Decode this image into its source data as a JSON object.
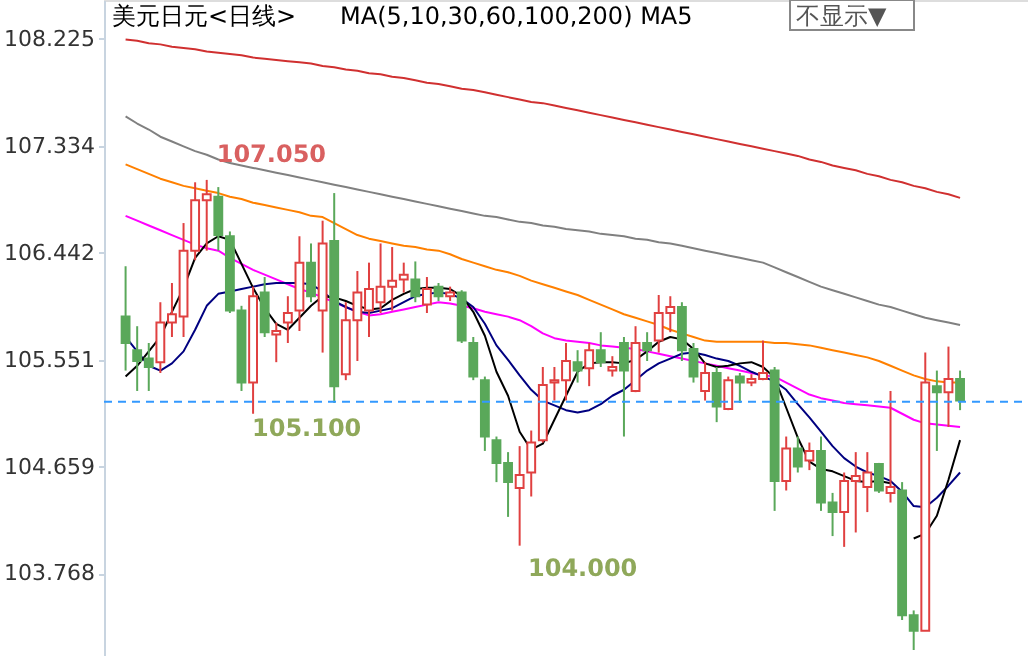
{
  "chart_data": {
    "type": "candlestick",
    "title": "美元日元<日线>",
    "subtitle": "MA(5,10,30,60,100,200) MA5",
    "categories": [
      null,
      null,
      null,
      null,
      null,
      null,
      null,
      null,
      null,
      null,
      null,
      null,
      null,
      null,
      null,
      null,
      null,
      null,
      null,
      null,
      null,
      null,
      null,
      null,
      null,
      null,
      null,
      null,
      null,
      null,
      null,
      null,
      null,
      null,
      null,
      null,
      null,
      null,
      null,
      null,
      null,
      null,
      null,
      null,
      null,
      null,
      null,
      null,
      null,
      null,
      null,
      null,
      null,
      null,
      null,
      null,
      null,
      null,
      null,
      null,
      null,
      null,
      null,
      null,
      null,
      null,
      null,
      null,
      null,
      null,
      null,
      null,
      null
    ],
    "ohlc": [
      [
        105.91,
        106.33,
        105.46,
        105.69
      ],
      [
        105.63,
        105.83,
        105.29,
        105.54
      ],
      [
        105.56,
        105.69,
        105.29,
        105.49
      ],
      [
        105.53,
        106.03,
        105.44,
        105.86
      ],
      [
        105.86,
        106.19,
        105.74,
        105.93
      ],
      [
        105.91,
        106.69,
        105.74,
        106.46
      ],
      [
        106.46,
        107.03,
        106.38,
        106.88
      ],
      [
        106.88,
        107.05,
        106.46,
        106.93
      ],
      [
        106.91,
        106.99,
        106.46,
        106.59
      ],
      [
        106.58,
        106.62,
        105.94,
        105.96
      ],
      [
        105.96,
        106.0,
        105.29,
        105.36
      ],
      [
        105.36,
        106.16,
        105.1,
        106.08
      ],
      [
        106.11,
        106.24,
        105.74,
        105.78
      ],
      [
        105.76,
        105.86,
        105.53,
        105.79
      ],
      [
        105.86,
        106.08,
        105.69,
        105.94
      ],
      [
        105.96,
        106.58,
        105.79,
        106.36
      ],
      [
        106.36,
        106.52,
        106.03,
        106.08
      ],
      [
        105.96,
        106.71,
        105.61,
        106.52
      ],
      [
        106.54,
        106.94,
        105.19,
        105.33
      ],
      [
        105.43,
        106.03,
        105.38,
        105.88
      ],
      [
        105.88,
        106.29,
        105.54,
        106.11
      ],
      [
        105.96,
        106.36,
        105.74,
        106.14
      ],
      [
        106.03,
        106.52,
        105.94,
        106.16
      ],
      [
        106.16,
        106.49,
        105.96,
        106.21
      ],
      [
        106.22,
        106.36,
        106.11,
        106.26
      ],
      [
        106.22,
        106.37,
        106.03,
        106.08
      ],
      [
        106.01,
        106.24,
        105.94,
        106.14
      ],
      [
        106.16,
        106.19,
        106.04,
        106.08
      ],
      [
        106.08,
        106.16,
        106.04,
        106.11
      ],
      [
        106.11,
        106.13,
        105.69,
        105.71
      ],
      [
        105.69,
        105.74,
        105.38,
        105.41
      ],
      [
        105.38,
        105.41,
        104.79,
        104.91
      ],
      [
        104.88,
        104.91,
        104.53,
        104.69
      ],
      [
        104.69,
        104.78,
        104.24,
        104.53
      ],
      [
        104.48,
        104.83,
        104.0,
        104.59
      ],
      [
        104.61,
        104.96,
        104.41,
        104.86
      ],
      [
        104.88,
        105.49,
        104.86,
        105.34
      ],
      [
        105.36,
        105.49,
        105.21,
        105.38
      ],
      [
        105.38,
        105.69,
        105.21,
        105.54
      ],
      [
        105.53,
        105.63,
        105.36,
        105.46
      ],
      [
        105.48,
        105.69,
        105.33,
        105.63
      ],
      [
        105.63,
        105.78,
        105.49,
        105.53
      ],
      [
        105.46,
        105.58,
        105.41,
        105.49
      ],
      [
        105.69,
        105.74,
        104.91,
        105.46
      ],
      [
        105.29,
        105.83,
        105.28,
        105.69
      ],
      [
        105.69,
        105.78,
        105.54,
        105.63
      ],
      [
        105.71,
        106.09,
        105.61,
        105.94
      ],
      [
        105.94,
        106.08,
        105.78,
        105.99
      ],
      [
        105.99,
        106.03,
        105.54,
        105.63
      ],
      [
        105.64,
        105.69,
        105.36,
        105.41
      ],
      [
        105.29,
        105.53,
        105.21,
        105.44
      ],
      [
        105.44,
        105.49,
        105.03,
        105.16
      ],
      [
        105.14,
        105.41,
        105.13,
        105.38
      ],
      [
        105.41,
        105.44,
        105.19,
        105.36
      ],
      [
        105.36,
        105.43,
        105.33,
        105.39
      ],
      [
        105.39,
        105.71,
        105.38,
        105.44
      ],
      [
        105.46,
        105.49,
        104.29,
        104.54
      ],
      [
        104.54,
        104.91,
        104.46,
        104.81
      ],
      [
        104.81,
        104.91,
        104.61,
        104.66
      ],
      [
        104.71,
        104.86,
        104.63,
        104.79
      ],
      [
        104.79,
        104.91,
        104.29,
        104.36
      ],
      [
        104.36,
        104.44,
        104.08,
        104.28
      ],
      [
        104.28,
        104.61,
        103.99,
        104.54
      ],
      [
        104.54,
        104.78,
        104.11,
        104.58
      ],
      [
        104.49,
        104.78,
        104.28,
        104.61
      ],
      [
        104.68,
        104.69,
        104.44,
        104.46
      ],
      [
        104.44,
        105.29,
        104.36,
        104.49
      ],
      [
        104.46,
        104.53,
        103.38,
        103.42
      ],
      [
        103.42,
        103.46,
        103.13,
        103.29
      ],
      [
        103.29,
        105.61,
        103.29,
        105.36
      ],
      [
        105.33,
        105.46,
        104.79,
        105.28
      ],
      [
        105.28,
        105.66,
        104.99,
        105.39
      ],
      [
        105.39,
        105.46,
        105.13,
        105.21
      ]
    ],
    "colors": [
      "#5aa85a",
      "#5aa85a",
      "#5aa85a",
      "#e04040",
      "#e04040",
      "#e04040",
      "#e04040",
      "#e04040",
      "#5aa85a",
      "#5aa85a",
      "#5aa85a",
      "#e04040",
      "#5aa85a",
      "#e04040",
      "#e04040",
      "#e04040",
      "#5aa85a",
      "#e04040",
      "#5aa85a",
      "#e04040",
      "#e04040",
      "#e04040",
      "#e04040",
      "#e04040",
      "#e04040",
      "#5aa85a",
      "#e04040",
      "#5aa85a",
      "#e04040",
      "#5aa85a",
      "#5aa85a",
      "#5aa85a",
      "#5aa85a",
      "#5aa85a",
      "#e04040",
      "#e04040",
      "#e04040",
      "#e04040",
      "#e04040",
      "#5aa85a",
      "#e04040",
      "#5aa85a",
      "#e04040",
      "#5aa85a",
      "#e04040",
      "#5aa85a",
      "#e04040",
      "#e04040",
      "#5aa85a",
      "#5aa85a",
      "#e04040",
      "#5aa85a",
      "#e04040",
      "#5aa85a",
      "#e04040",
      "#e04040",
      "#5aa85a",
      "#e04040",
      "#5aa85a",
      "#e04040",
      "#5aa85a",
      "#5aa85a",
      "#e04040",
      "#e04040",
      "#e04040",
      "#5aa85a",
      "#e04040",
      "#5aa85a",
      "#5aa85a",
      "#e04040",
      "#5aa85a",
      "#e04040",
      "#5aa85a"
    ],
    "series": [
      {
        "type": "line",
        "color": "#d03030",
        "values": [
          108.22,
          108.21,
          108.19,
          108.18,
          108.16,
          108.15,
          108.14,
          108.12,
          108.11,
          108.1,
          108.09,
          108.07,
          108.06,
          108.05,
          108.04,
          108.03,
          108.02,
          108.0,
          107.99,
          107.97,
          107.96,
          107.94,
          107.93,
          107.91,
          107.9,
          107.88,
          107.86,
          107.85,
          107.83,
          107.81,
          107.8,
          107.78,
          107.76,
          107.74,
          107.72,
          107.7,
          107.69,
          107.67,
          107.65,
          107.63,
          107.61,
          107.59,
          107.57,
          107.55,
          107.53,
          107.51,
          107.49,
          107.47,
          107.45,
          107.43,
          107.41,
          107.39,
          107.37,
          107.35,
          107.33,
          107.31,
          107.29,
          107.27,
          107.25,
          107.22,
          107.2,
          107.17,
          107.15,
          107.13,
          107.1,
          107.08,
          107.05,
          107.03,
          107.0,
          106.98,
          106.95,
          106.93,
          106.9
        ]
      },
      {
        "type": "line",
        "color": "#808080",
        "values": [
          107.58,
          107.52,
          107.47,
          107.41,
          107.37,
          107.33,
          107.29,
          107.26,
          107.22,
          107.19,
          107.17,
          107.15,
          107.13,
          107.11,
          107.09,
          107.07,
          107.05,
          107.03,
          107.01,
          106.99,
          106.97,
          106.95,
          106.93,
          106.91,
          106.89,
          106.87,
          106.85,
          106.83,
          106.81,
          106.79,
          106.77,
          106.75,
          106.74,
          106.72,
          106.7,
          106.69,
          106.67,
          106.66,
          106.64,
          106.63,
          106.62,
          106.6,
          106.59,
          106.58,
          106.56,
          106.55,
          106.53,
          106.52,
          106.5,
          106.48,
          106.46,
          106.44,
          106.42,
          106.4,
          106.38,
          106.36,
          106.32,
          106.28,
          106.24,
          106.2,
          106.16,
          106.13,
          106.1,
          106.07,
          106.04,
          106.01,
          105.99,
          105.96,
          105.93,
          105.9,
          105.88,
          105.86,
          105.84
        ]
      },
      {
        "type": "line",
        "color": "#ff8000",
        "values": [
          107.18,
          107.14,
          107.1,
          107.06,
          107.03,
          107.0,
          106.98,
          106.96,
          106.94,
          106.91,
          106.89,
          106.86,
          106.84,
          106.82,
          106.8,
          106.78,
          106.75,
          106.74,
          106.69,
          106.64,
          106.59,
          106.56,
          106.54,
          106.52,
          106.5,
          106.49,
          106.47,
          106.46,
          106.43,
          106.39,
          106.36,
          106.33,
          106.3,
          106.28,
          106.25,
          106.21,
          106.18,
          106.15,
          106.12,
          106.09,
          106.05,
          106.01,
          105.97,
          105.93,
          105.9,
          105.87,
          105.84,
          105.8,
          105.77,
          105.74,
          105.71,
          105.7,
          105.7,
          105.7,
          105.7,
          105.7,
          105.69,
          105.69,
          105.68,
          105.67,
          105.65,
          105.63,
          105.61,
          105.59,
          105.57,
          105.54,
          105.5,
          105.46,
          105.42,
          105.39,
          105.37,
          105.36,
          105.36
        ]
      },
      {
        "type": "line",
        "color": "#ff00ff",
        "values": [
          106.75,
          106.71,
          106.67,
          106.63,
          106.59,
          106.55,
          106.51,
          106.48,
          106.46,
          106.4,
          106.35,
          106.3,
          106.26,
          106.22,
          106.18,
          106.14,
          106.11,
          106.07,
          106.03,
          105.99,
          105.95,
          105.92,
          105.93,
          105.95,
          105.97,
          105.99,
          106.01,
          106.03,
          106.02,
          106.0,
          105.98,
          105.95,
          105.93,
          105.91,
          105.88,
          105.83,
          105.77,
          105.73,
          105.71,
          105.7,
          105.69,
          105.67,
          105.66,
          105.65,
          105.64,
          105.62,
          105.6,
          105.58,
          105.56,
          105.54,
          105.52,
          105.5,
          105.48,
          105.46,
          105.44,
          105.42,
          105.41,
          105.36,
          105.31,
          105.26,
          105.23,
          105.21,
          105.19,
          105.18,
          105.17,
          105.16,
          105.15,
          105.1,
          105.05,
          105.02,
          105.01,
          105.0,
          104.99
        ]
      },
      {
        "type": "line",
        "color": "#000080",
        "values": [
          105.74,
          105.62,
          105.5,
          105.46,
          105.52,
          105.62,
          105.8,
          106.0,
          106.1,
          106.12,
          106.14,
          106.16,
          106.18,
          106.19,
          106.19,
          106.19,
          106.18,
          106.12,
          106.04,
          105.99,
          105.95,
          105.94,
          105.96,
          105.98,
          106.03,
          106.08,
          106.1,
          106.11,
          106.1,
          106.06,
          105.99,
          105.85,
          105.67,
          105.55,
          105.42,
          105.3,
          105.21,
          105.17,
          105.13,
          105.11,
          105.13,
          105.18,
          105.25,
          105.3,
          105.38,
          105.46,
          105.52,
          105.56,
          105.6,
          105.61,
          105.59,
          105.56,
          105.54,
          105.5,
          105.45,
          105.41,
          105.37,
          105.3,
          105.18,
          105.07,
          104.95,
          104.83,
          104.73,
          104.66,
          104.61,
          104.58,
          104.54,
          104.45,
          104.33,
          104.32,
          104.4,
          104.5,
          104.61
        ]
      },
      {
        "type": "line",
        "color": "#000000",
        "values": [
          105.41,
          105.5,
          105.62,
          105.74,
          105.95,
          106.15,
          106.4,
          106.52,
          106.58,
          106.55,
          106.35,
          106.15,
          105.98,
          105.85,
          105.8,
          105.9,
          106.0,
          106.08,
          106.07,
          106.04,
          106.0,
          105.97,
          105.98,
          106.05,
          106.1,
          106.14,
          106.15,
          106.15,
          106.14,
          106.08,
          105.95,
          105.75,
          105.45,
          105.25,
          104.95,
          104.8,
          104.85,
          105.05,
          105.25,
          105.45,
          105.52,
          105.53,
          105.53,
          105.52,
          105.55,
          105.62,
          105.7,
          105.74,
          105.72,
          105.64,
          105.52,
          105.49,
          105.5,
          105.52,
          105.53,
          105.49,
          105.4,
          105.15,
          104.9,
          104.7,
          104.64,
          104.62,
          104.58,
          104.54,
          104.53,
          104.54,
          104.52,
          null,
          104.06,
          104.1,
          104.25,
          104.55,
          104.88
        ]
      }
    ],
    "ylim": [
      103.08,
      108.55
    ],
    "yticks": [
      108.225,
      107.334,
      106.442,
      105.551,
      104.659,
      103.768
    ],
    "ref_lines": [
      {
        "axis": "y",
        "value": 105.2,
        "color": "#3399ff",
        "line_style": "dashed"
      }
    ],
    "annotations": [
      {
        "text": "107.050",
        "y": 107.05
      },
      "105.100",
      "104.000",
      "不显示▼"
    ],
    "grid": false
  }
}
